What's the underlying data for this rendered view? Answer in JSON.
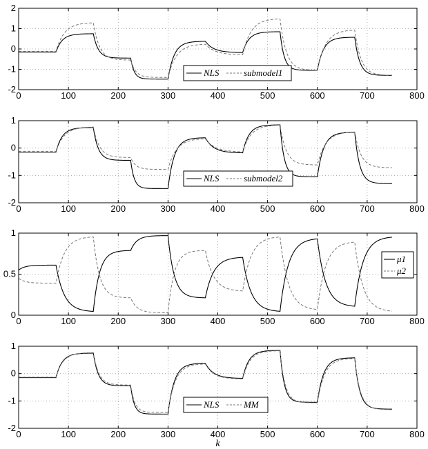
{
  "chart_data": [
    {
      "type": "line",
      "xlim": [
        0,
        800
      ],
      "ylim": [
        -2,
        2
      ],
      "xticks": [
        "0",
        "100",
        "200",
        "300",
        "400",
        "500",
        "600",
        "700",
        "800"
      ],
      "yticks": [
        "2",
        "1",
        "0",
        "-1",
        "-2"
      ],
      "xlabel": "",
      "grid": true,
      "legend": {
        "placement": "bottom-center",
        "entries": [
          "NLS",
          "submodel1"
        ]
      },
      "series": [
        {
          "name": "NLS",
          "style": "solid",
          "color": "#000000",
          "segments": [
            [
              0,
              75,
              -0.15,
              0.08
            ],
            [
              75,
              150,
              0.75,
              0.08
            ],
            [
              150,
              225,
              -0.45,
              0.1
            ],
            [
              225,
              300,
              -1.48,
              0.14
            ],
            [
              300,
              375,
              0.38,
              0.08
            ],
            [
              375,
              450,
              -0.18,
              0.06
            ],
            [
              450,
              525,
              0.85,
              0.08
            ],
            [
              525,
              600,
              -1.05,
              0.12
            ],
            [
              600,
              675,
              0.58,
              0.08
            ],
            [
              675,
              750,
              -1.3,
              0.1
            ]
          ]
        },
        {
          "name": "submodel1",
          "style": "dashed",
          "color": "#777777",
          "segments": [
            [
              0,
              75,
              -0.12,
              0.06
            ],
            [
              75,
              150,
              1.3,
              0.06
            ],
            [
              150,
              225,
              -0.55,
              0.08
            ],
            [
              225,
              300,
              -1.4,
              0.1
            ],
            [
              300,
              375,
              0.25,
              0.06
            ],
            [
              375,
              450,
              -0.3,
              0.05
            ],
            [
              450,
              525,
              1.5,
              0.06
            ],
            [
              525,
              600,
              -1.05,
              0.08
            ],
            [
              600,
              675,
              0.95,
              0.06
            ],
            [
              675,
              750,
              -1.3,
              0.08
            ]
          ]
        }
      ]
    },
    {
      "type": "line",
      "xlim": [
        0,
        800
      ],
      "ylim": [
        -2,
        1
      ],
      "xticks": [
        "0",
        "100",
        "200",
        "300",
        "400",
        "500",
        "600",
        "700",
        "800"
      ],
      "yticks": [
        "1",
        "0",
        "-1",
        "-2"
      ],
      "xlabel": "",
      "grid": true,
      "legend": {
        "placement": "bottom-center",
        "entries": [
          "NLS",
          "submodel2"
        ]
      },
      "series": [
        {
          "name": "NLS",
          "style": "solid",
          "color": "#000000",
          "segments": [
            [
              0,
              75,
              -0.15,
              0.08
            ],
            [
              75,
              150,
              0.75,
              0.08
            ],
            [
              150,
              225,
              -0.45,
              0.1
            ],
            [
              225,
              300,
              -1.48,
              0.14
            ],
            [
              300,
              375,
              0.38,
              0.08
            ],
            [
              375,
              450,
              -0.18,
              0.06
            ],
            [
              450,
              525,
              0.85,
              0.08
            ],
            [
              525,
              600,
              -1.05,
              0.12
            ],
            [
              600,
              675,
              0.58,
              0.08
            ],
            [
              675,
              750,
              -1.3,
              0.1
            ]
          ]
        },
        {
          "name": "submodel2",
          "style": "dashed",
          "color": "#777777",
          "segments": [
            [
              0,
              75,
              -0.12,
              0.06
            ],
            [
              75,
              150,
              0.78,
              0.06
            ],
            [
              150,
              225,
              -0.35,
              0.08
            ],
            [
              225,
              300,
              -0.78,
              0.1
            ],
            [
              300,
              375,
              0.35,
              0.06
            ],
            [
              375,
              450,
              -0.15,
              0.05
            ],
            [
              450,
              525,
              0.85,
              0.06
            ],
            [
              525,
              600,
              -0.62,
              0.08
            ],
            [
              600,
              675,
              0.6,
              0.06
            ],
            [
              675,
              750,
              -0.72,
              0.08
            ]
          ]
        }
      ]
    },
    {
      "type": "line",
      "xlim": [
        0,
        800
      ],
      "ylim": [
        0,
        1
      ],
      "xticks": [
        "0",
        "100",
        "200",
        "300",
        "400",
        "500",
        "600",
        "700",
        "800"
      ],
      "yticks": [
        "1",
        "0.5",
        "0"
      ],
      "xlabel": "",
      "grid": true,
      "legend": {
        "placement": "right",
        "entries": [
          "μ1",
          "μ2"
        ]
      },
      "series": [
        {
          "name": "μ1",
          "style": "solid",
          "color": "#000000",
          "start": 0.55,
          "segments": [
            [
              0,
              75,
              0.61,
              0.08
            ],
            [
              75,
              150,
              0.04,
              0.06
            ],
            [
              150,
              225,
              0.79,
              0.08
            ],
            [
              225,
              300,
              0.97,
              0.08
            ],
            [
              300,
              375,
              0.21,
              0.08
            ],
            [
              375,
              450,
              0.71,
              0.06
            ],
            [
              450,
              525,
              0.04,
              0.06
            ],
            [
              525,
              600,
              0.94,
              0.06
            ],
            [
              600,
              675,
              0.1,
              0.06
            ],
            [
              675,
              750,
              0.96,
              0.06
            ]
          ]
        },
        {
          "name": "μ2",
          "style": "dashed",
          "color": "#777777",
          "start": 0.45,
          "segments": [
            [
              0,
              75,
              0.39,
              0.08
            ],
            [
              75,
              150,
              0.96,
              0.06
            ],
            [
              150,
              225,
              0.21,
              0.08
            ],
            [
              225,
              300,
              0.03,
              0.08
            ],
            [
              300,
              375,
              0.79,
              0.08
            ],
            [
              375,
              450,
              0.29,
              0.06
            ],
            [
              450,
              525,
              0.96,
              0.06
            ],
            [
              525,
              600,
              0.06,
              0.06
            ],
            [
              600,
              675,
              0.9,
              0.06
            ],
            [
              675,
              750,
              0.04,
              0.06
            ]
          ]
        }
      ]
    },
    {
      "type": "line",
      "xlim": [
        0,
        800
      ],
      "ylim": [
        -2,
        1
      ],
      "xticks": [
        "0",
        "100",
        "200",
        "300",
        "400",
        "500",
        "600",
        "700",
        "800"
      ],
      "yticks": [
        "1",
        "0",
        "-1",
        "-2"
      ],
      "xlabel": "k",
      "grid": true,
      "legend": {
        "placement": "bottom-center",
        "entries": [
          "NLS",
          "MM"
        ]
      },
      "series": [
        {
          "name": "NLS",
          "style": "solid",
          "color": "#000000",
          "segments": [
            [
              0,
              75,
              -0.15,
              0.08
            ],
            [
              75,
              150,
              0.75,
              0.08
            ],
            [
              150,
              225,
              -0.45,
              0.1
            ],
            [
              225,
              300,
              -1.48,
              0.14
            ],
            [
              300,
              375,
              0.38,
              0.08
            ],
            [
              375,
              450,
              -0.18,
              0.06
            ],
            [
              450,
              525,
              0.85,
              0.08
            ],
            [
              525,
              600,
              -1.05,
              0.12
            ],
            [
              600,
              675,
              0.58,
              0.08
            ],
            [
              675,
              750,
              -1.3,
              0.1
            ]
          ]
        },
        {
          "name": "MM",
          "style": "dashed",
          "color": "#777777",
          "segments": [
            [
              0,
              75,
              -0.13,
              0.07
            ],
            [
              75,
              150,
              0.77,
              0.07
            ],
            [
              150,
              225,
              -0.42,
              0.09
            ],
            [
              225,
              300,
              -1.42,
              0.12
            ],
            [
              300,
              375,
              0.36,
              0.07
            ],
            [
              375,
              450,
              -0.2,
              0.06
            ],
            [
              450,
              525,
              0.84,
              0.07
            ],
            [
              525,
              600,
              -1.07,
              0.1
            ],
            [
              600,
              675,
              0.56,
              0.07
            ],
            [
              675,
              750,
              -1.32,
              0.09
            ]
          ]
        }
      ]
    }
  ]
}
